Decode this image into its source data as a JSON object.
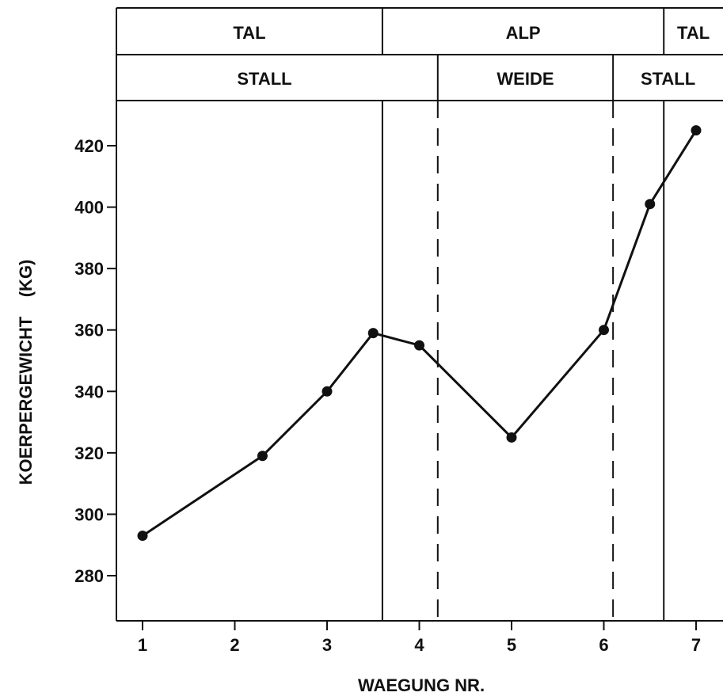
{
  "chart_data": {
    "type": "line",
    "xlabel": "WAEGUNG NR.",
    "ylabel": "KOERPERGEWICHT    (KG)",
    "xticks": [
      1,
      2,
      3,
      4,
      5,
      6,
      7
    ],
    "yticks": [
      280,
      300,
      320,
      340,
      360,
      380,
      400,
      420
    ],
    "ylim": [
      270,
      435
    ],
    "xlim": [
      0.7,
      7.3
    ],
    "grid": false,
    "series": [
      {
        "points": [
          {
            "x": 1.0,
            "y": 293
          },
          {
            "x": 2.3,
            "y": 319
          },
          {
            "x": 3.0,
            "y": 340
          },
          {
            "x": 3.5,
            "y": 359
          },
          {
            "x": 4.0,
            "y": 355
          },
          {
            "x": 5.0,
            "y": 325
          },
          {
            "x": 6.0,
            "y": 360
          },
          {
            "x": 6.5,
            "y": 401
          },
          {
            "x": 7.0,
            "y": 425
          }
        ]
      }
    ],
    "location_row": [
      {
        "label": "TAL",
        "from": 0.7,
        "to": 3.6
      },
      {
        "label": "ALP",
        "from": 3.6,
        "to": 6.65
      },
      {
        "label": "TAL",
        "from": 6.65,
        "to": 7.3
      }
    ],
    "housing_row": [
      {
        "label": "STALL",
        "from": 0.7,
        "to": 4.2
      },
      {
        "label": "WEIDE",
        "from": 4.2,
        "to": 6.1
      },
      {
        "label": "STALL",
        "from": 6.1,
        "to": 7.3
      }
    ],
    "solid_boundaries": [
      3.6,
      6.65
    ],
    "dashed_boundaries": [
      4.2,
      6.1
    ]
  }
}
